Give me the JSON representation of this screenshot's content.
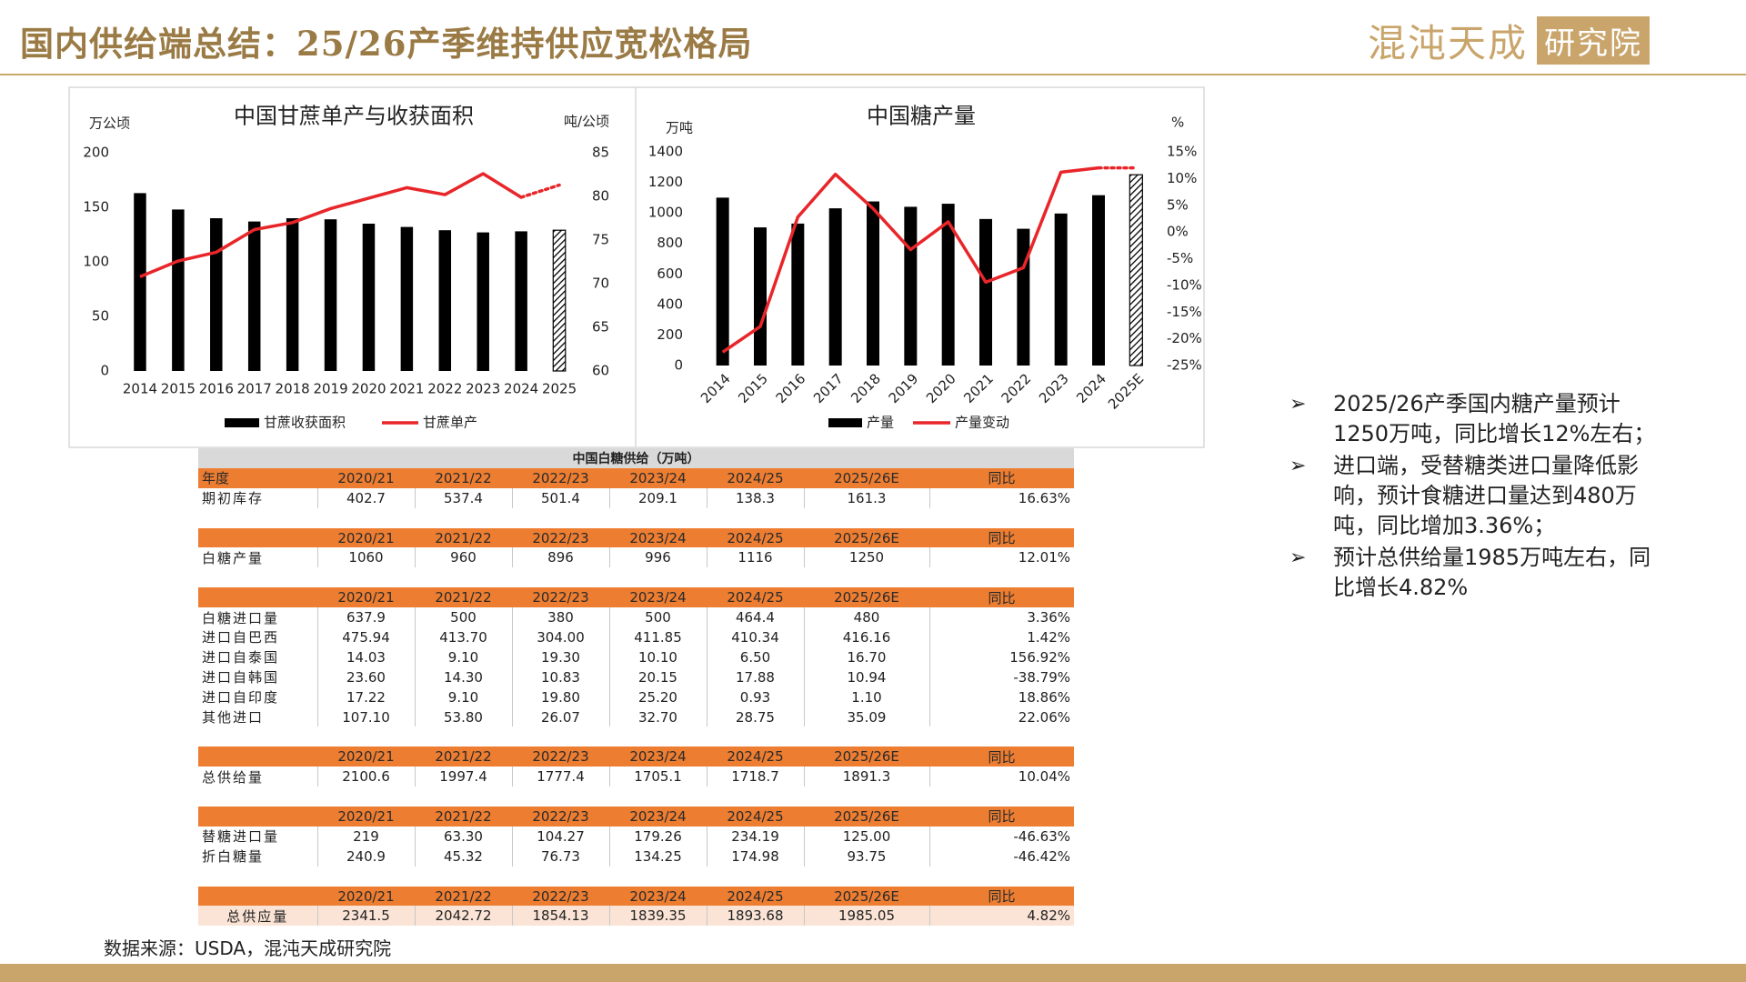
{
  "header": {
    "title": "国内供给端总结：25/26产季维持供应宽松格局",
    "logo_name": "混沌天成",
    "logo_sub": "研究院"
  },
  "chart_data": [
    {
      "type": "bar_line",
      "title": "中国甘蔗单产与收获面积",
      "y_label": "万公顷",
      "y2_label": "吨/公顷",
      "categories": [
        "2014",
        "2015",
        "2016",
        "2017",
        "2018",
        "2019",
        "2020",
        "2021",
        "2022",
        "2023",
        "2024",
        "2025"
      ],
      "series": [
        {
          "name": "甘蔗收获面积",
          "type": "bar",
          "color": "#000000",
          "values": [
            163,
            148,
            140,
            137,
            140,
            139,
            135,
            132,
            129,
            127,
            128,
            129
          ]
        },
        {
          "name": "甘蔗单产",
          "type": "line",
          "axis": "y2",
          "color": "#e8262a",
          "values": [
            70.8,
            72.6,
            73.6,
            76.2,
            77.0,
            78.6,
            79.8,
            81.0,
            80.2,
            82.6,
            79.9,
            81.3
          ]
        }
      ],
      "forecast_last": true,
      "ylim": [
        0,
        200
      ],
      "yticks": [
        0,
        50,
        100,
        150,
        200
      ],
      "y2lim": [
        60,
        85
      ],
      "y2ticks": [
        60,
        65,
        70,
        75,
        80,
        85
      ],
      "grid": false
    },
    {
      "type": "bar_line",
      "title": "中国糖产量",
      "y_label": "万吨",
      "y2_label": "%",
      "categories": [
        "2014",
        "2015",
        "2016",
        "2017",
        "2018",
        "2019",
        "2020",
        "2021",
        "2022",
        "2023",
        "2024",
        "2025E"
      ],
      "series": [
        {
          "name": "产量",
          "type": "bar",
          "color": "#000000",
          "values": [
            1100,
            905,
            930,
            1030,
            1075,
            1040,
            1060,
            960,
            896,
            996,
            1116,
            1250
          ]
        },
        {
          "name": "产量变动",
          "type": "line",
          "axis": "y2",
          "color": "#e8262a",
          "values": [
            -22.5,
            -17.7,
            2.8,
            10.8,
            4.4,
            -3.3,
            1.9,
            -9.4,
            -6.7,
            11.2,
            12.0,
            12.0
          ]
        }
      ],
      "forecast_last": true,
      "ylim": [
        0,
        1400
      ],
      "yticks": [
        0,
        200,
        400,
        600,
        800,
        1000,
        1200,
        1400
      ],
      "y2lim": [
        -25,
        15
      ],
      "y2ticks": [
        {
          "value": -25,
          "label": "-25%"
        },
        {
          "value": -20,
          "label": "-20%"
        },
        {
          "value": -15,
          "label": "-15%"
        },
        {
          "value": -10,
          "label": "-10%"
        },
        {
          "value": -5,
          "label": "-5%"
        },
        {
          "value": 0,
          "label": "0%"
        },
        {
          "value": 5,
          "label": "5%"
        },
        {
          "value": 10,
          "label": "10%"
        },
        {
          "value": 15,
          "label": "15%"
        }
      ],
      "grid": false
    }
  ],
  "table": {
    "title": "中国白糖供给（万吨）",
    "sections": [
      {
        "header": [
          "年度",
          "2020/21",
          "2021/22",
          "2022/23",
          "2023/24",
          "2024/25",
          "2025/26E",
          "同比"
        ],
        "rows": [
          [
            "期初库存",
            "402.7",
            "537.4",
            "501.4",
            "209.1",
            "138.3",
            "161.3",
            "16.63%"
          ]
        ]
      },
      {
        "header": [
          null,
          "2020/21",
          "2021/22",
          "2022/23",
          "2023/24",
          "2024/25",
          "2025/26E",
          "同比"
        ],
        "rows": [
          [
            "白糖产量",
            "1060",
            "960",
            "896",
            "996",
            "1116",
            "1250",
            "12.01%"
          ]
        ]
      },
      {
        "header": [
          null,
          "2020/21",
          "2021/22",
          "2022/23",
          "2023/24",
          "2024/25",
          "2025/26E",
          "同比"
        ],
        "rows": [
          [
            "白糖进口量",
            "637.9",
            "500",
            "380",
            "500",
            "464.4",
            "480",
            "3.36%"
          ],
          [
            "进口自巴西",
            "475.94",
            "413.70",
            "304.00",
            "411.85",
            "410.34",
            "416.16",
            "1.42%"
          ],
          [
            "进口自泰国",
            "14.03",
            "9.10",
            "19.30",
            "10.10",
            "6.50",
            "16.70",
            "156.92%"
          ],
          [
            "进口自韩国",
            "23.60",
            "14.30",
            "10.83",
            "20.15",
            "17.88",
            "10.94",
            "-38.79%"
          ],
          [
            "进口自印度",
            "17.22",
            "9.10",
            "19.80",
            "25.20",
            "0.93",
            "1.10",
            "18.86%"
          ],
          [
            "其他进口",
            "107.10",
            "53.80",
            "26.07",
            "32.70",
            "28.75",
            "35.09",
            "22.06%"
          ]
        ]
      },
      {
        "header": [
          null,
          "2020/21",
          "2021/22",
          "2022/23",
          "2023/24",
          "2024/25",
          "2025/26E",
          "同比"
        ],
        "rows": [
          [
            "总供给量",
            "2100.6",
            "1997.4",
            "1777.4",
            "1705.1",
            "1718.7",
            "1891.3",
            "10.04%"
          ]
        ]
      },
      {
        "header": [
          null,
          "2020/21",
          "2021/22",
          "2022/23",
          "2023/24",
          "2024/25",
          "2025/26E",
          "同比"
        ],
        "rows": [
          [
            "替糖进口量",
            "219",
            "63.30",
            "104.27",
            "179.26",
            "234.19",
            "125.00",
            "-46.63%"
          ],
          [
            "折白糖量",
            "240.9",
            "45.32",
            "76.73",
            "134.25",
            "174.98",
            "93.75",
            "-46.42%"
          ]
        ]
      },
      {
        "header": [
          null,
          "2020/21",
          "2021/22",
          "2022/23",
          "2023/24",
          "2024/25",
          "2025/26E",
          "同比"
        ],
        "rows": [
          [
            "总供应量",
            "2341.5",
            "2042.72",
            "1854.13",
            "1839.35",
            "1893.68",
            "1985.05",
            "4.82%"
          ]
        ]
      }
    ]
  },
  "bullets": [
    "2025/26产季国内糖产量预计1250万吨，同比增长12%左右；",
    "进口端，受替糖类进口量降低影响，预计食糖进口量达到480万吨，同比增加3.36%；",
    "预计总供给量1985万吨左右，同比增长4.82%"
  ],
  "source": "数据来源：USDA，混沌天成研究院"
}
